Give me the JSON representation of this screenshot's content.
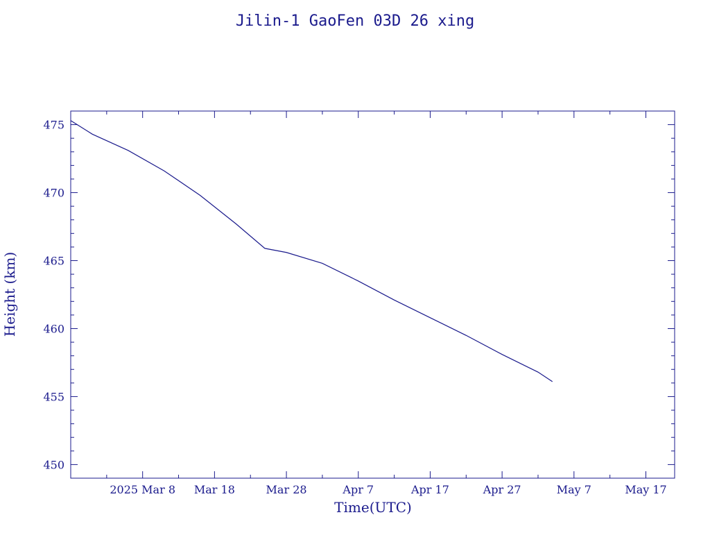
{
  "chart_data": {
    "type": "line",
    "title": "Jilin-1 GaoFen 03D 26 xing",
    "xlabel": "Time(UTC)",
    "ylabel": "Height (km)",
    "x_ticks": [
      {
        "date": "2025-03-08",
        "label": "2025 Mar  8"
      },
      {
        "date": "2025-03-18",
        "label": "Mar 18"
      },
      {
        "date": "2025-03-28",
        "label": "Mar 28"
      },
      {
        "date": "2025-04-07",
        "label": "Apr  7"
      },
      {
        "date": "2025-04-17",
        "label": "Apr 17"
      },
      {
        "date": "2025-04-27",
        "label": "Apr 27"
      },
      {
        "date": "2025-05-07",
        "label": "May  7"
      },
      {
        "date": "2025-05-17",
        "label": "May 17"
      }
    ],
    "y_ticks": [
      450,
      455,
      460,
      465,
      470,
      475
    ],
    "xlim": [
      "2025-02-26",
      "2025-05-21"
    ],
    "ylim": [
      449,
      476
    ],
    "grid": false,
    "color": "#1a1a8c",
    "series": [
      {
        "x": [
          "2025-02-26",
          "2025-03-01",
          "2025-03-06",
          "2025-03-11",
          "2025-03-16",
          "2025-03-21",
          "2025-03-25",
          "2025-03-28",
          "2025-04-02",
          "2025-04-07",
          "2025-04-12",
          "2025-04-17",
          "2025-04-22",
          "2025-04-27",
          "2025-05-02",
          "2025-05-04"
        ],
        "y": [
          475.3,
          474.3,
          473.1,
          471.6,
          469.8,
          467.7,
          465.9,
          465.6,
          464.8,
          463.5,
          462.1,
          460.8,
          459.5,
          458.1,
          456.8,
          456.1
        ]
      }
    ]
  }
}
